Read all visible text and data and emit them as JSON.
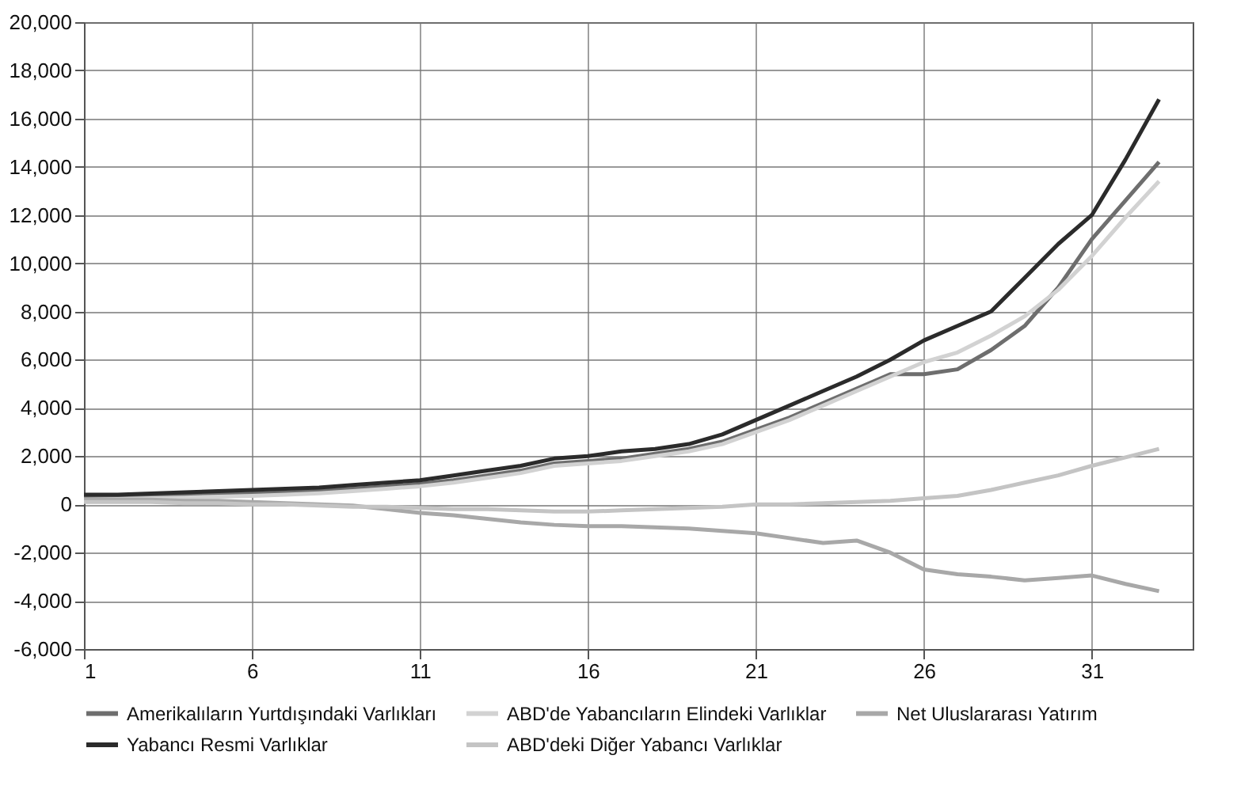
{
  "chart_data": {
    "type": "line",
    "x": [
      1,
      2,
      3,
      4,
      5,
      6,
      7,
      8,
      9,
      10,
      11,
      12,
      13,
      14,
      15,
      16,
      17,
      18,
      19,
      20,
      21,
      22,
      23,
      24,
      25,
      26,
      27,
      28,
      29,
      30,
      31,
      32,
      33
    ],
    "series": [
      {
        "name": "Amerikalıların Yurtdışındaki Varlıkları",
        "color": "#6e6e6e",
        "values": [
          300,
          320,
          350,
          380,
          420,
          450,
          500,
          560,
          650,
          750,
          850,
          1000,
          1200,
          1400,
          1700,
          1800,
          1900,
          2100,
          2300,
          2600,
          3100,
          3600,
          4200,
          4800,
          5400,
          5400,
          5600,
          6400,
          7400,
          9000,
          11000,
          12600,
          14200
        ]
      },
      {
        "name": "ABD'de Yabancıların Elindeki Varlıklar",
        "color": "#d2d2d2",
        "values": [
          200,
          220,
          250,
          280,
          320,
          350,
          400,
          460,
          550,
          650,
          750,
          900,
          1100,
          1300,
          1600,
          1700,
          1800,
          2000,
          2200,
          2500,
          3000,
          3500,
          4100,
          4700,
          5300,
          5900,
          6300,
          7000,
          7800,
          8900,
          10300,
          11900,
          13400
        ]
      },
      {
        "name": "Net Uluslararası Yatırım",
        "color": "#a8a8a8",
        "values": [
          200,
          200,
          200,
          150,
          150,
          100,
          50,
          0,
          -50,
          -200,
          -350,
          -450,
          -600,
          -750,
          -850,
          -900,
          -900,
          -950,
          -1000,
          -1100,
          -1200,
          -1400,
          -1600,
          -1500,
          -2000,
          -2700,
          -2900,
          -3000,
          -3150,
          -3050,
          -2950,
          -3300,
          -3600
        ]
      },
      {
        "name": "Yabancı Resmi Varlıklar",
        "color": "#2b2b2b",
        "values": [
          400,
          400,
          450,
          500,
          550,
          600,
          650,
          700,
          800,
          900,
          1000,
          1200,
          1400,
          1600,
          1900,
          2000,
          2200,
          2300,
          2500,
          2900,
          3500,
          4100,
          4700,
          5300,
          6000,
          6800,
          7400,
          8000,
          9400,
          10800,
          12000,
          14300,
          16800
        ]
      },
      {
        "name": "ABD'deki Diğer Yabancı Varlıklar",
        "color": "#c4c4c4",
        "values": [
          100,
          100,
          100,
          50,
          50,
          0,
          0,
          -50,
          -100,
          -100,
          -150,
          -200,
          -200,
          -250,
          -300,
          -300,
          -250,
          -200,
          -150,
          -100,
          0,
          0,
          50,
          100,
          150,
          250,
          350,
          600,
          900,
          1200,
          1600,
          1950,
          2300
        ]
      }
    ],
    "xlim": [
      1,
      34
    ],
    "xticks": [
      1,
      6,
      11,
      16,
      21,
      26,
      31
    ],
    "ylim": [
      -6000,
      20000
    ],
    "yticks": [
      {
        "value": -6000,
        "label": "-6,000"
      },
      {
        "value": -4000,
        "label": "-4,000"
      },
      {
        "value": -2000,
        "label": "-2,000"
      },
      0,
      {
        "value": 2000,
        "label": "2,000"
      },
      {
        "value": 4000,
        "label": "4,000"
      },
      {
        "value": 6000,
        "label": "6,000"
      },
      {
        "value": 8000,
        "label": "8,000"
      },
      {
        "value": 10000,
        "label": "10,000"
      },
      {
        "value": 12000,
        "label": "12,000"
      },
      {
        "value": 14000,
        "label": "14,000"
      },
      {
        "value": 16000,
        "label": "16,000"
      },
      {
        "value": 18000,
        "label": "18,000"
      },
      {
        "value": 20000,
        "label": "20,000"
      }
    ],
    "grid": true,
    "legend": "bottom",
    "marker": "none",
    "line_style": "solid"
  }
}
